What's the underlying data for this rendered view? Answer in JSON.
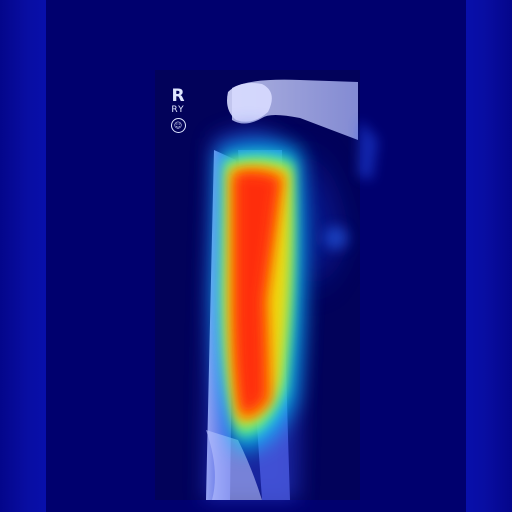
{
  "image": {
    "marker": {
      "letter": "R",
      "sub": "RY",
      "circle": "☺"
    }
  },
  "colors": {
    "background": "#000082",
    "heat_low": "#1e3cff",
    "heat_mid": "#00e0ff",
    "heat_high": "#ffe600",
    "heat_peak": "#ff2a00"
  }
}
